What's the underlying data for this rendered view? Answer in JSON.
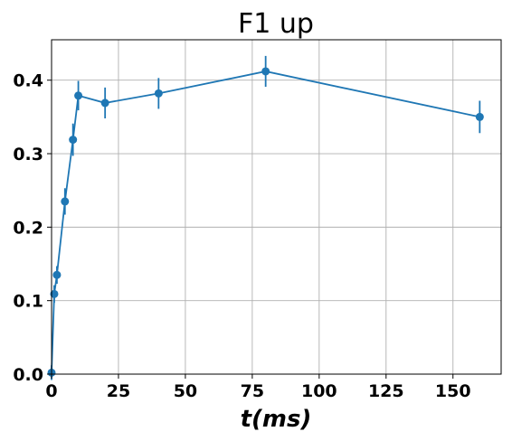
{
  "chart_data": {
    "type": "line",
    "title": "F1 up",
    "xlabel": "t(ms)",
    "ylabel": "",
    "xlim": [
      0,
      168
    ],
    "ylim": [
      0,
      0.455
    ],
    "xticks": [
      0,
      25,
      50,
      75,
      100,
      125,
      150
    ],
    "yticks": [
      0.0,
      0.1,
      0.2,
      0.3,
      0.4
    ],
    "xtick_labels": [
      "0",
      "25",
      "50",
      "75",
      "100",
      "125",
      "150"
    ],
    "ytick_labels": [
      "0.0",
      "0.1",
      "0.2",
      "0.3",
      "0.4"
    ],
    "grid": true,
    "series": [
      {
        "color": "#1f77b4",
        "x": [
          0,
          1,
          2,
          5,
          8,
          10,
          20,
          40,
          80,
          160
        ],
        "y": [
          0.002,
          0.109,
          0.135,
          0.235,
          0.319,
          0.379,
          0.369,
          0.382,
          0.412,
          0.35
        ],
        "err": [
          0.01,
          0.012,
          0.012,
          0.018,
          0.022,
          0.02,
          0.021,
          0.021,
          0.021,
          0.022
        ]
      }
    ]
  }
}
